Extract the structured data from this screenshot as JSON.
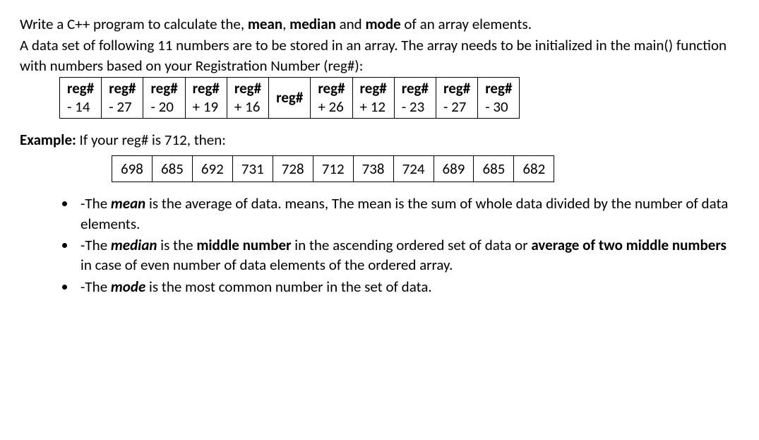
{
  "intro": {
    "line1_a": "Write a C++ program to calculate the, ",
    "line1_mean": "mean",
    "line1_b": ", ",
    "line1_median": "median",
    "line1_c": " and ",
    "line1_mode": "mode",
    "line1_d": " of an array elements.",
    "line2": "A data set of following 11 numbers are to be stored in an array. The array needs to be initialized in the main() function with numbers based on your Registration Number (reg#):"
  },
  "offset_table": {
    "reg_label": "reg#",
    "offsets": [
      "- 14",
      "- 27",
      "- 20",
      "+ 19",
      "+ 16",
      "",
      "+ 26",
      "+ 12",
      "- 23",
      "- 27",
      "- 30"
    ]
  },
  "example": {
    "label_a": "Example:",
    "label_b": " If your reg# is 712, then:",
    "values": [
      "698",
      "685",
      "692",
      "731",
      "728",
      "712",
      "738",
      "724",
      "689",
      "685",
      "682"
    ]
  },
  "bullets": {
    "mean_a": "-The ",
    "mean_b": "mean",
    "mean_c": " is the average of data. means, The mean is the sum of whole data divided by the number of data elements.",
    "median_a": "-The ",
    "median_b": "median",
    "median_c": " is the ",
    "median_d": "middle number",
    "median_e": " in the ascending ordered set of data or ",
    "median_f": "average of two middle numbers",
    "median_g": " in case of even number of data elements of the ordered array.",
    "mode_a": "-The ",
    "mode_b": "mode",
    "mode_c": " is the most common number in the set of data."
  }
}
